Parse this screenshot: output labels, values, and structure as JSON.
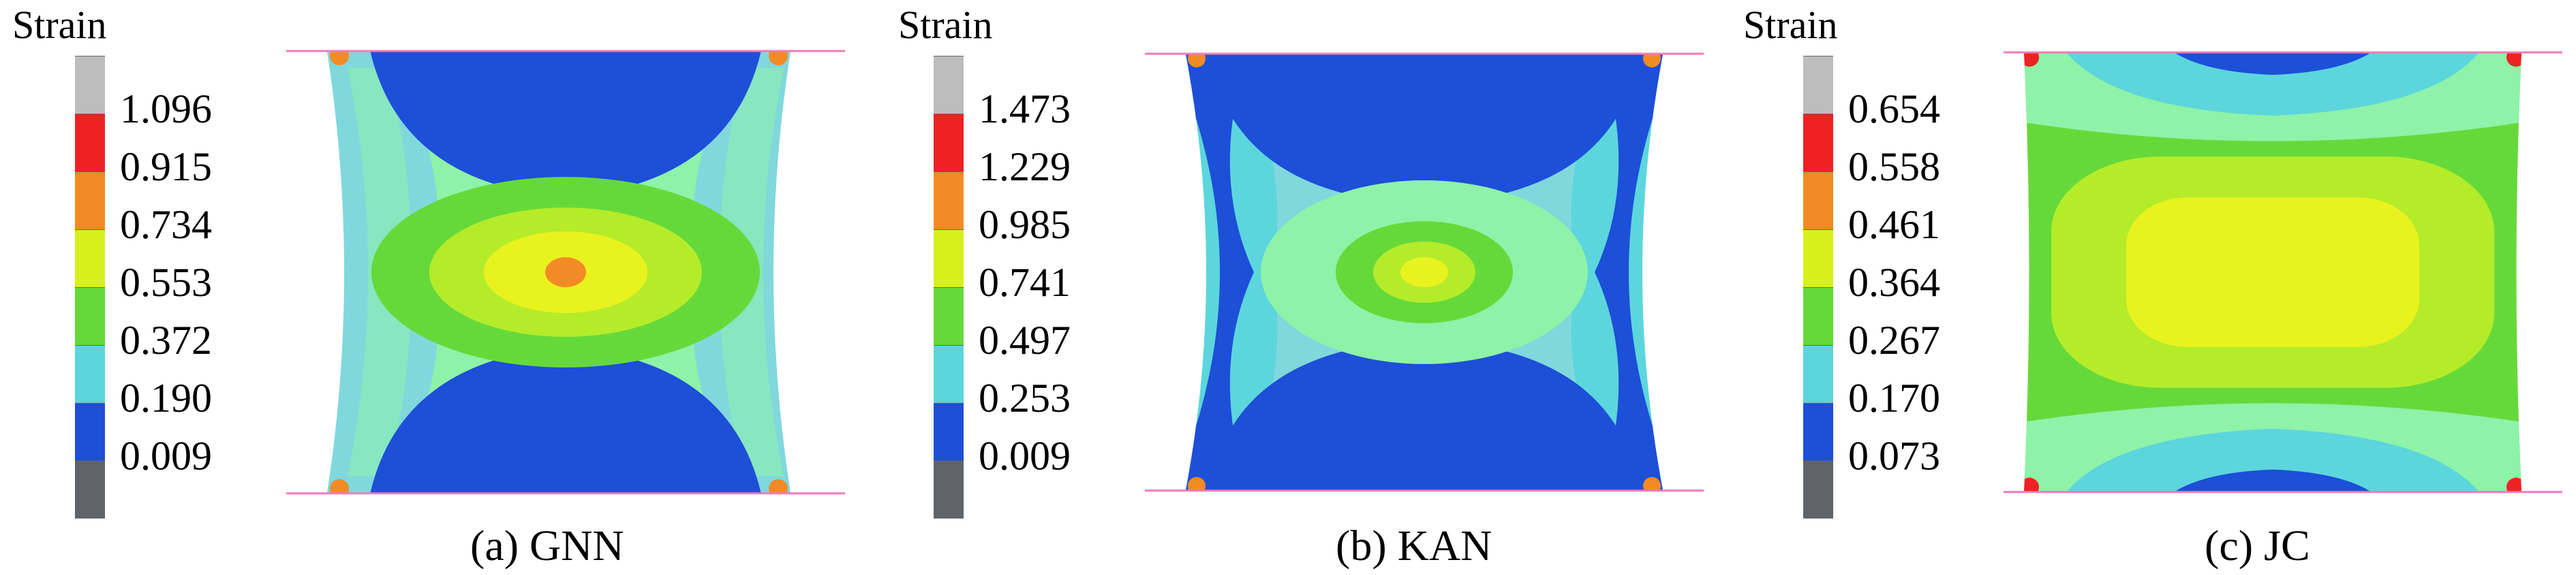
{
  "figure": {
    "panels": [
      {
        "id": "gnn",
        "caption": "(a) GNN",
        "colorbar": {
          "title": "Strain",
          "ticks": [
            "1.096",
            "0.915",
            "0.734",
            "0.553",
            "0.372",
            "0.190",
            "0.009"
          ],
          "colors": [
            "#bdbdbd",
            "#ee2222",
            "#f28b25",
            "#d8f01a",
            "#66d93a",
            "#5cd6dc",
            "#1d4fd8",
            "#5f6468"
          ]
        }
      },
      {
        "id": "kan",
        "caption": "(b) KAN",
        "colorbar": {
          "title": "Strain",
          "ticks": [
            "1.473",
            "1.229",
            "0.985",
            "0.741",
            "0.497",
            "0.253",
            "0.009"
          ],
          "colors": [
            "#bdbdbd",
            "#ee2222",
            "#f28b25",
            "#d8f01a",
            "#66d93a",
            "#5cd6dc",
            "#1d4fd8",
            "#5f6468"
          ]
        }
      },
      {
        "id": "jc",
        "caption": "(c) JC",
        "colorbar": {
          "title": "Strain",
          "ticks": [
            "0.654",
            "0.558",
            "0.461",
            "0.364",
            "0.267",
            "0.170",
            "0.073"
          ],
          "colors": [
            "#bdbdbd",
            "#ee2222",
            "#f28b25",
            "#d8f01a",
            "#66d93a",
            "#5cd6dc",
            "#1d4fd8",
            "#5f6468"
          ]
        }
      }
    ],
    "contour_colors": {
      "dark_blue": "#1d4fd8",
      "light_blue": "#80d8dd",
      "cyan": "#5cd6dc",
      "mint": "#8ef2a8",
      "green": "#66d93a",
      "lime": "#b4ec2a",
      "yellow": "#e8f21f",
      "orange": "#f28b25",
      "red": "#ee2222",
      "plate_line": "#f07ab8"
    }
  }
}
